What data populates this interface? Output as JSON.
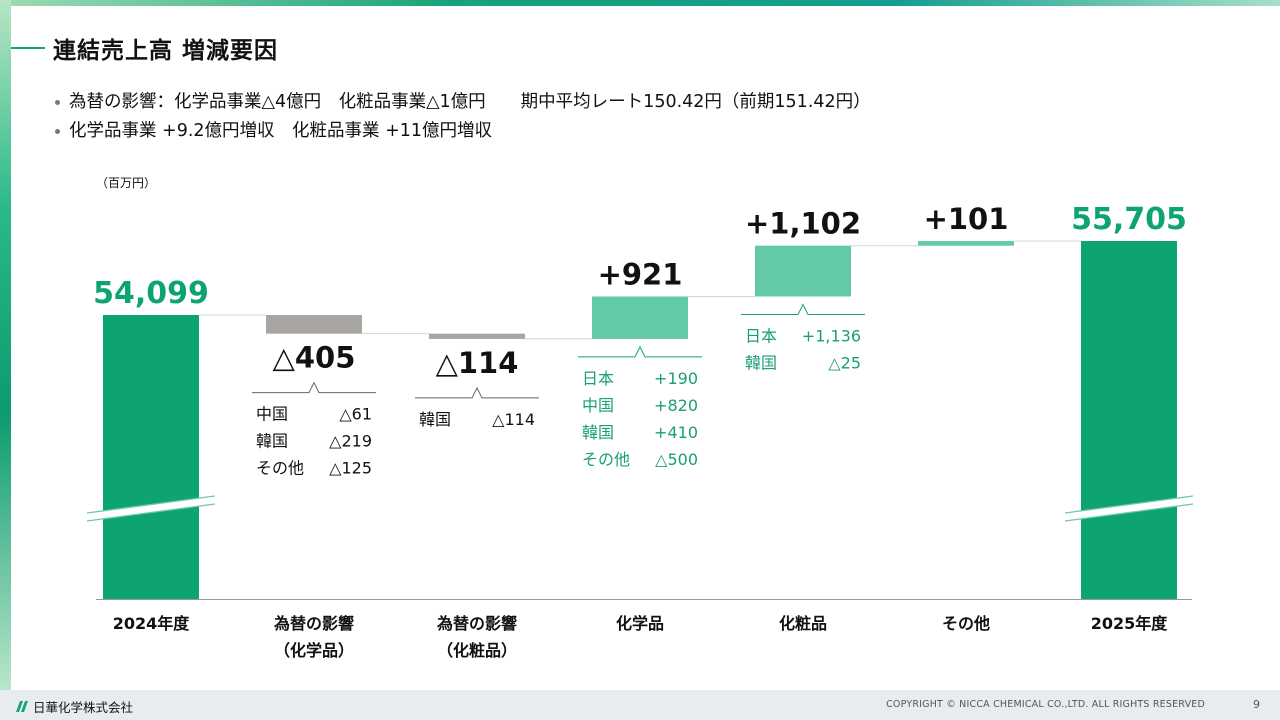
{
  "title": "連結売上高 増減要因",
  "bullets": [
    "為替の影響：化学品事業△4億円　化粧品事業△1億円　　期中平均レート150.42円（前期151.42円）",
    "化学品事業 +9.2億円増収　化粧品事業 +11億円増収"
  ],
  "unit": "（百万円）",
  "colors": {
    "total": "#0ea373",
    "negative": "#a9a6a2",
    "positive": "#63c9a9",
    "detail_positive": "#1a9e78",
    "accent": "#17a37a"
  },
  "chart_data": {
    "type": "bar",
    "subtype": "waterfall",
    "title": "",
    "xlabel": "",
    "ylabel": "",
    "unit": "百万円",
    "categories": [
      [
        "2024年度"
      ],
      [
        "為替の影響",
        "（化学品）"
      ],
      [
        "為替の影響",
        "（化粧品）"
      ],
      [
        "化学品"
      ],
      [
        "化粧品"
      ],
      [
        "その他"
      ],
      [
        "2025年度"
      ]
    ],
    "values": [
      54099,
      -405,
      -114,
      921,
      1102,
      101,
      55705
    ],
    "kinds": [
      "total",
      "negative",
      "negative",
      "positive",
      "positive",
      "positive",
      "total"
    ],
    "value_labels": [
      "54,099",
      "△405",
      "△114",
      "+921",
      "+1,102",
      "+101",
      "55,705"
    ],
    "axis_break": true,
    "breakdowns": [
      null,
      [
        {
          "name": "中国",
          "value": "△61"
        },
        {
          "name": "韓国",
          "value": "△219"
        },
        {
          "name": "その他",
          "value": "△125"
        }
      ],
      [
        {
          "name": "韓国",
          "value": "△114"
        }
      ],
      [
        {
          "name": "日本",
          "value": "+190"
        },
        {
          "name": "中国",
          "value": "+820"
        },
        {
          "name": "韓国",
          "value": "+410"
        },
        {
          "name": "その他",
          "value": "△500"
        }
      ],
      [
        {
          "name": "日本",
          "value": "+1,136"
        },
        {
          "name": "韓国",
          "value": "△25"
        }
      ],
      null,
      null
    ]
  },
  "footer": {
    "logo_text": "日華化学株式会社",
    "copyright": "COPYRIGHT © NICCA CHEMICAL CO.,LTD. ALL RIGHTS RESERVED",
    "page": "9"
  }
}
